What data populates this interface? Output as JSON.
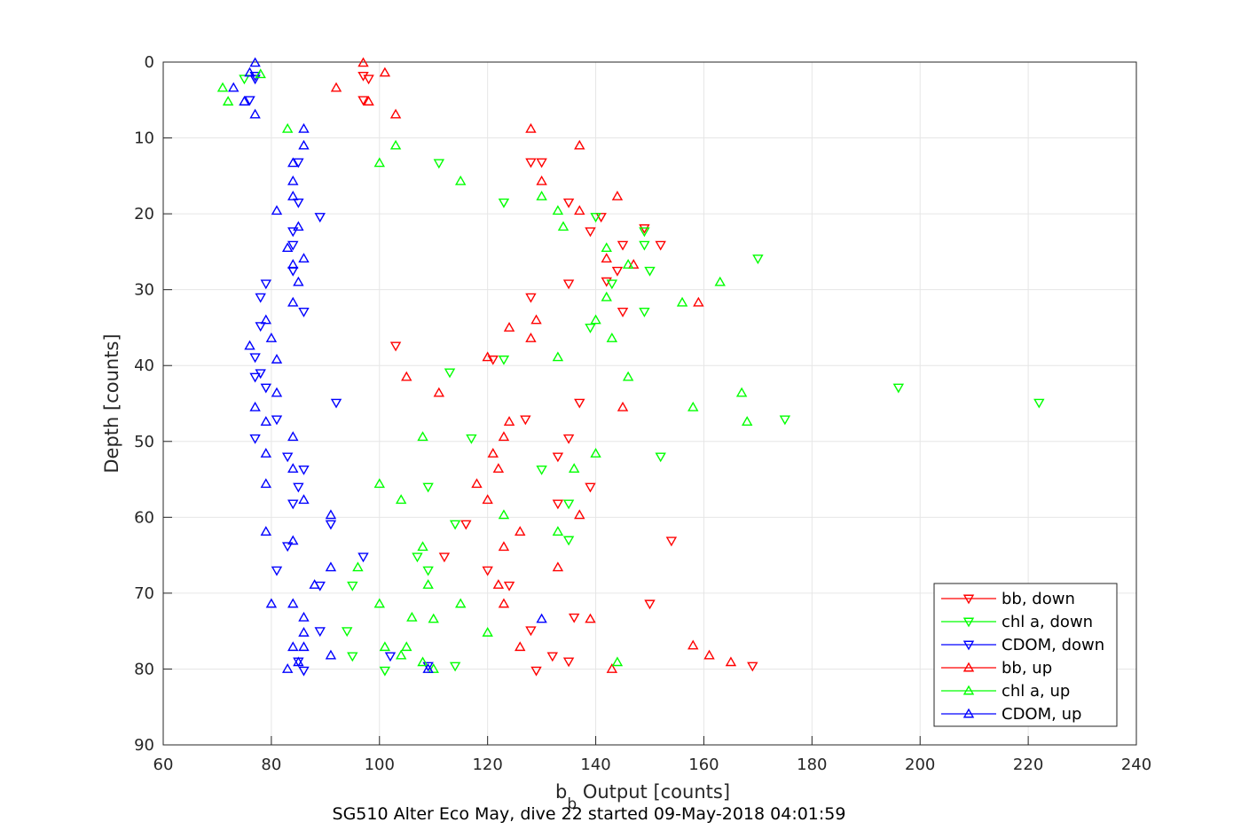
{
  "chart_data": {
    "type": "scatter",
    "xlabel_main": "b",
    "xlabel_sub": "b",
    "xlabel_rest": " Output [counts]",
    "ylabel": "Depth [counts]",
    "caption": "SG510 Alter Eco May, dive 22 started 09-May-2018 04:01:59",
    "xlim": [
      60,
      240
    ],
    "ylim": [
      0,
      90
    ],
    "y_reversed": true,
    "grid": true,
    "legend_position": "bottom-right",
    "x_ticks": [
      "60",
      "80",
      "100",
      "120",
      "140",
      "160",
      "180",
      "200",
      "220",
      "240"
    ],
    "y_ticks": [
      "0",
      "10",
      "20",
      "30",
      "40",
      "50",
      "60",
      "70",
      "80",
      "90"
    ],
    "series": [
      {
        "name": "bb, down",
        "color": "#ff0000",
        "marker": "triangle-down",
        "points": [
          [
            97,
            1.8
          ],
          [
            98,
            2.2
          ],
          [
            97,
            5.0
          ],
          [
            128,
            13.2
          ],
          [
            130,
            13.2
          ],
          [
            135,
            18.5
          ],
          [
            141,
            20.4
          ],
          [
            149,
            21.9
          ],
          [
            139,
            22.3
          ],
          [
            145,
            24.1
          ],
          [
            152,
            24.1
          ],
          [
            144,
            27.5
          ],
          [
            142,
            28.9
          ],
          [
            135,
            29.2
          ],
          [
            128,
            31.0
          ],
          [
            145,
            32.9
          ],
          [
            103,
            37.4
          ],
          [
            121,
            39.2
          ],
          [
            137,
            44.9
          ],
          [
            127,
            47.1
          ],
          [
            135,
            49.6
          ],
          [
            133,
            52.0
          ],
          [
            139,
            56.0
          ],
          [
            133,
            58.2
          ],
          [
            116,
            60.9
          ],
          [
            154,
            63.1
          ],
          [
            112,
            65.2
          ],
          [
            120,
            67.0
          ],
          [
            124,
            69.0
          ],
          [
            150,
            71.4
          ],
          [
            128,
            74.9
          ],
          [
            136,
            73.2
          ],
          [
            132,
            78.3
          ],
          [
            135,
            79.0
          ],
          [
            129,
            80.2
          ],
          [
            169,
            79.6
          ]
        ]
      },
      {
        "name": "chl a, down",
        "color": "#00ff00",
        "marker": "triangle-down",
        "points": [
          [
            75,
            2.2
          ],
          [
            111,
            13.3
          ],
          [
            123,
            18.5
          ],
          [
            140,
            20.4
          ],
          [
            149,
            22.3
          ],
          [
            149,
            24.1
          ],
          [
            170,
            25.9
          ],
          [
            150,
            27.5
          ],
          [
            143,
            29.2
          ],
          [
            149,
            32.9
          ],
          [
            139,
            35.0
          ],
          [
            123,
            39.2
          ],
          [
            113,
            40.9
          ],
          [
            196,
            42.9
          ],
          [
            222,
            44.9
          ],
          [
            175,
            47.1
          ],
          [
            117,
            49.6
          ],
          [
            152,
            52.0
          ],
          [
            130,
            53.7
          ],
          [
            109,
            56.0
          ],
          [
            135,
            58.2
          ],
          [
            114,
            60.9
          ],
          [
            135,
            63.0
          ],
          [
            107,
            65.2
          ],
          [
            109,
            67.0
          ],
          [
            95,
            69.0
          ],
          [
            94,
            75.0
          ],
          [
            95,
            78.3
          ],
          [
            101,
            80.2
          ],
          [
            114,
            79.6
          ]
        ]
      },
      {
        "name": "CDOM, down",
        "color": "#0000ff",
        "marker": "triangle-down",
        "points": [
          [
            77,
            1.8
          ],
          [
            77,
            2.2
          ],
          [
            76,
            5.0
          ],
          [
            85,
            13.2
          ],
          [
            85,
            18.5
          ],
          [
            89,
            20.4
          ],
          [
            84,
            22.3
          ],
          [
            84,
            24.1
          ],
          [
            84,
            27.5
          ],
          [
            79,
            29.2
          ],
          [
            78,
            31.0
          ],
          [
            86,
            32.9
          ],
          [
            78,
            34.8
          ],
          [
            77,
            38.9
          ],
          [
            78,
            41.0
          ],
          [
            77,
            41.5
          ],
          [
            79,
            42.9
          ],
          [
            92,
            44.9
          ],
          [
            81,
            47.1
          ],
          [
            77,
            49.6
          ],
          [
            83,
            52.0
          ],
          [
            86,
            53.7
          ],
          [
            85,
            56.0
          ],
          [
            84,
            58.2
          ],
          [
            91,
            60.9
          ],
          [
            83,
            63.8
          ],
          [
            97,
            65.2
          ],
          [
            81,
            67.0
          ],
          [
            89,
            69.0
          ],
          [
            89,
            75.0
          ],
          [
            102,
            78.3
          ],
          [
            109,
            79.6
          ],
          [
            85,
            79.0
          ],
          [
            86,
            80.2
          ]
        ]
      },
      {
        "name": "bb, up",
        "color": "#ff0000",
        "marker": "triangle-up",
        "points": [
          [
            97,
            0.1
          ],
          [
            101,
            1.4
          ],
          [
            92,
            3.4
          ],
          [
            98,
            5.2
          ],
          [
            103,
            6.9
          ],
          [
            128,
            8.8
          ],
          [
            137,
            11.0
          ],
          [
            130,
            15.7
          ],
          [
            144,
            17.7
          ],
          [
            137,
            19.6
          ],
          [
            142,
            25.9
          ],
          [
            147,
            26.7
          ],
          [
            159,
            31.7
          ],
          [
            129,
            34.0
          ],
          [
            124,
            35.0
          ],
          [
            128,
            36.4
          ],
          [
            120,
            38.9
          ],
          [
            105,
            41.5
          ],
          [
            111,
            43.6
          ],
          [
            145,
            45.5
          ],
          [
            124,
            47.4
          ],
          [
            123,
            49.4
          ],
          [
            121,
            51.6
          ],
          [
            122,
            53.6
          ],
          [
            118,
            55.6
          ],
          [
            120,
            57.7
          ],
          [
            137,
            59.7
          ],
          [
            126,
            61.9
          ],
          [
            123,
            63.9
          ],
          [
            133,
            66.6
          ],
          [
            122,
            68.9
          ],
          [
            123,
            71.4
          ],
          [
            139,
            73.4
          ],
          [
            126,
            77.1
          ],
          [
            158,
            76.9
          ],
          [
            161,
            78.2
          ],
          [
            165,
            79.1
          ],
          [
            143,
            80.0
          ]
        ]
      },
      {
        "name": "chl a, up",
        "color": "#00ff00",
        "marker": "triangle-up",
        "points": [
          [
            78,
            1.6
          ],
          [
            71,
            3.4
          ],
          [
            72,
            5.2
          ],
          [
            83,
            8.8
          ],
          [
            103,
            11.0
          ],
          [
            100,
            13.3
          ],
          [
            115,
            15.7
          ],
          [
            130,
            17.7
          ],
          [
            133,
            19.6
          ],
          [
            134,
            21.7
          ],
          [
            142,
            24.5
          ],
          [
            146,
            26.7
          ],
          [
            163,
            29.0
          ],
          [
            142,
            31.0
          ],
          [
            156,
            31.7
          ],
          [
            140,
            34.0
          ],
          [
            143,
            36.4
          ],
          [
            133,
            38.9
          ],
          [
            146,
            41.5
          ],
          [
            167,
            43.6
          ],
          [
            158,
            45.5
          ],
          [
            168,
            47.4
          ],
          [
            108,
            49.4
          ],
          [
            140,
            51.6
          ],
          [
            136,
            53.6
          ],
          [
            100,
            55.6
          ],
          [
            104,
            57.7
          ],
          [
            123,
            59.7
          ],
          [
            133,
            61.9
          ],
          [
            108,
            63.9
          ],
          [
            96,
            66.6
          ],
          [
            109,
            68.9
          ],
          [
            100,
            71.4
          ],
          [
            115,
            71.4
          ],
          [
            110,
            73.4
          ],
          [
            106,
            73.2
          ],
          [
            120,
            75.2
          ],
          [
            101,
            77.1
          ],
          [
            105,
            77.1
          ],
          [
            104,
            78.2
          ],
          [
            108,
            79.1
          ],
          [
            110,
            80.0
          ],
          [
            144,
            79.1
          ]
        ]
      },
      {
        "name": "CDOM, up",
        "color": "#0000ff",
        "marker": "triangle-up",
        "points": [
          [
            77,
            0.1
          ],
          [
            76,
            1.4
          ],
          [
            73,
            3.4
          ],
          [
            75,
            5.2
          ],
          [
            77,
            6.9
          ],
          [
            86,
            8.8
          ],
          [
            86,
            11.0
          ],
          [
            84,
            13.3
          ],
          [
            84,
            15.7
          ],
          [
            84,
            17.7
          ],
          [
            81,
            19.6
          ],
          [
            85,
            21.7
          ],
          [
            83,
            24.5
          ],
          [
            86,
            25.9
          ],
          [
            84,
            26.7
          ],
          [
            85,
            29.0
          ],
          [
            84,
            31.7
          ],
          [
            79,
            34.0
          ],
          [
            80,
            36.4
          ],
          [
            76,
            37.4
          ],
          [
            81,
            39.2
          ],
          [
            81,
            43.6
          ],
          [
            77,
            45.5
          ],
          [
            79,
            47.4
          ],
          [
            84,
            49.4
          ],
          [
            79,
            51.6
          ],
          [
            84,
            53.6
          ],
          [
            79,
            55.6
          ],
          [
            86,
            57.7
          ],
          [
            91,
            59.7
          ],
          [
            79,
            61.9
          ],
          [
            84,
            63.1
          ],
          [
            91,
            66.6
          ],
          [
            88,
            68.9
          ],
          [
            80,
            71.4
          ],
          [
            84,
            71.4
          ],
          [
            86,
            73.2
          ],
          [
            130,
            73.4
          ],
          [
            86,
            75.2
          ],
          [
            84,
            77.1
          ],
          [
            86,
            77.1
          ],
          [
            91,
            78.2
          ],
          [
            85,
            79.1
          ],
          [
            83,
            80.0
          ],
          [
            109,
            80.0
          ]
        ]
      }
    ]
  }
}
